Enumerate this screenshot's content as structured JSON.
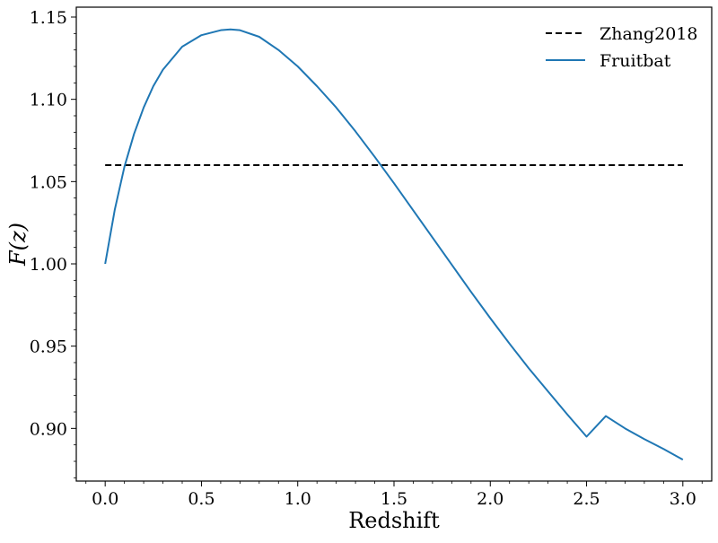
{
  "chart_data": {
    "type": "line",
    "title": "",
    "xlabel": "Redshift",
    "ylabel": "F(z)",
    "xlim": [
      -0.15,
      3.15
    ],
    "ylim": [
      0.868,
      1.156
    ],
    "xticks": [
      0.0,
      0.5,
      1.0,
      1.5,
      2.0,
      2.5,
      3.0
    ],
    "xtick_labels": [
      "0.0",
      "0.5",
      "1.0",
      "1.5",
      "2.0",
      "2.5",
      "3.0"
    ],
    "yticks": [
      0.9,
      0.95,
      1.0,
      1.05,
      1.1,
      1.15
    ],
    "ytick_labels": [
      "0.90",
      "0.95",
      "1.00",
      "1.05",
      "1.10",
      "1.15"
    ],
    "grid": false,
    "legend_position": "top-right",
    "series": [
      {
        "name": "Zhang2018",
        "color": "#000000",
        "style": "dashed",
        "x": [
          0.0,
          3.0
        ],
        "y": [
          1.06,
          1.06
        ]
      },
      {
        "name": "Fruitbat",
        "color": "#1f77b4",
        "style": "solid",
        "x": [
          0.0,
          0.05,
          0.1,
          0.15,
          0.2,
          0.25,
          0.3,
          0.4,
          0.5,
          0.6,
          0.65,
          0.7,
          0.8,
          0.9,
          1.0,
          1.1,
          1.2,
          1.3,
          1.4,
          1.5,
          1.6,
          1.7,
          1.8,
          1.9,
          2.0,
          2.1,
          2.2,
          2.3,
          2.4,
          2.5,
          2.6,
          2.7,
          2.8,
          2.9,
          3.0
        ],
        "y": [
          1.0,
          1.033,
          1.059,
          1.079,
          1.095,
          1.108,
          1.118,
          1.132,
          1.139,
          1.142,
          1.1425,
          1.142,
          1.138,
          1.13,
          1.12,
          1.108,
          1.095,
          1.0805,
          1.065,
          1.049,
          1.0325,
          1.016,
          0.9995,
          0.983,
          0.967,
          0.9515,
          0.9365,
          0.9225,
          0.9085,
          0.895,
          0.9075,
          0.9,
          0.8935,
          0.8875,
          0.881
        ]
      }
    ]
  }
}
